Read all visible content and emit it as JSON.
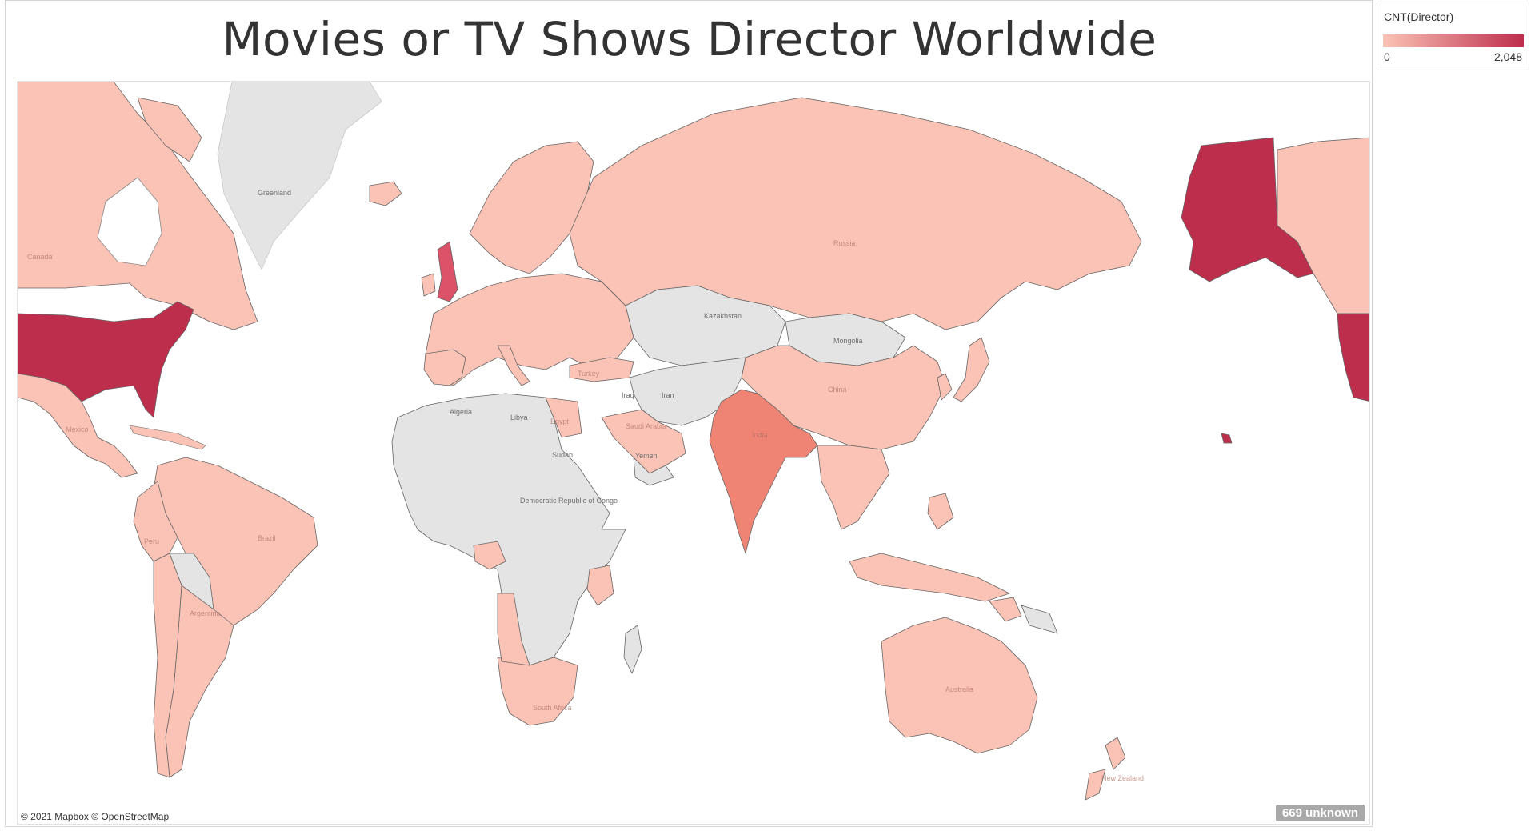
{
  "title": "Movies or TV Shows Director Worldwide",
  "legend": {
    "title": "CNT(Director)",
    "min_label": "0",
    "max_label": "2,048",
    "min_color": "#fbc3b5",
    "max_color": "#bd2d4c"
  },
  "colors": {
    "no_data": "#e4e4e4",
    "low": "#fbc3b5",
    "medium": "#f3a294",
    "high": "#ef8474",
    "top": "#bd2d4c",
    "ocean": "#ffffff",
    "border": "#555555"
  },
  "map": {
    "attribution": "© 2021 Mapbox © OpenStreetMap",
    "unknown_badge": "669 unknown",
    "country_labels": {
      "greenland": "Greenland",
      "canada": "Canada",
      "russia": "Russia",
      "kazakhstan": "Kazakhstan",
      "mongolia": "Mongolia",
      "china": "China",
      "india": "India",
      "iran": "Iran",
      "iraq": "Iraq",
      "saudi_arabia": "Saudi Arabia",
      "yemen": "Yemen",
      "algeria": "Algeria",
      "libya": "Libya",
      "egypt": "Egypt",
      "sudan": "Sudan",
      "drc": "Democratic Republic of Congo",
      "south_africa": "South Africa",
      "turkey": "Turkey",
      "mexico": "Mexico",
      "brazil": "Brazil",
      "peru": "Peru",
      "argentina": "Argentina",
      "australia": "Australia",
      "new_zealand": "New Zealand"
    }
  }
}
